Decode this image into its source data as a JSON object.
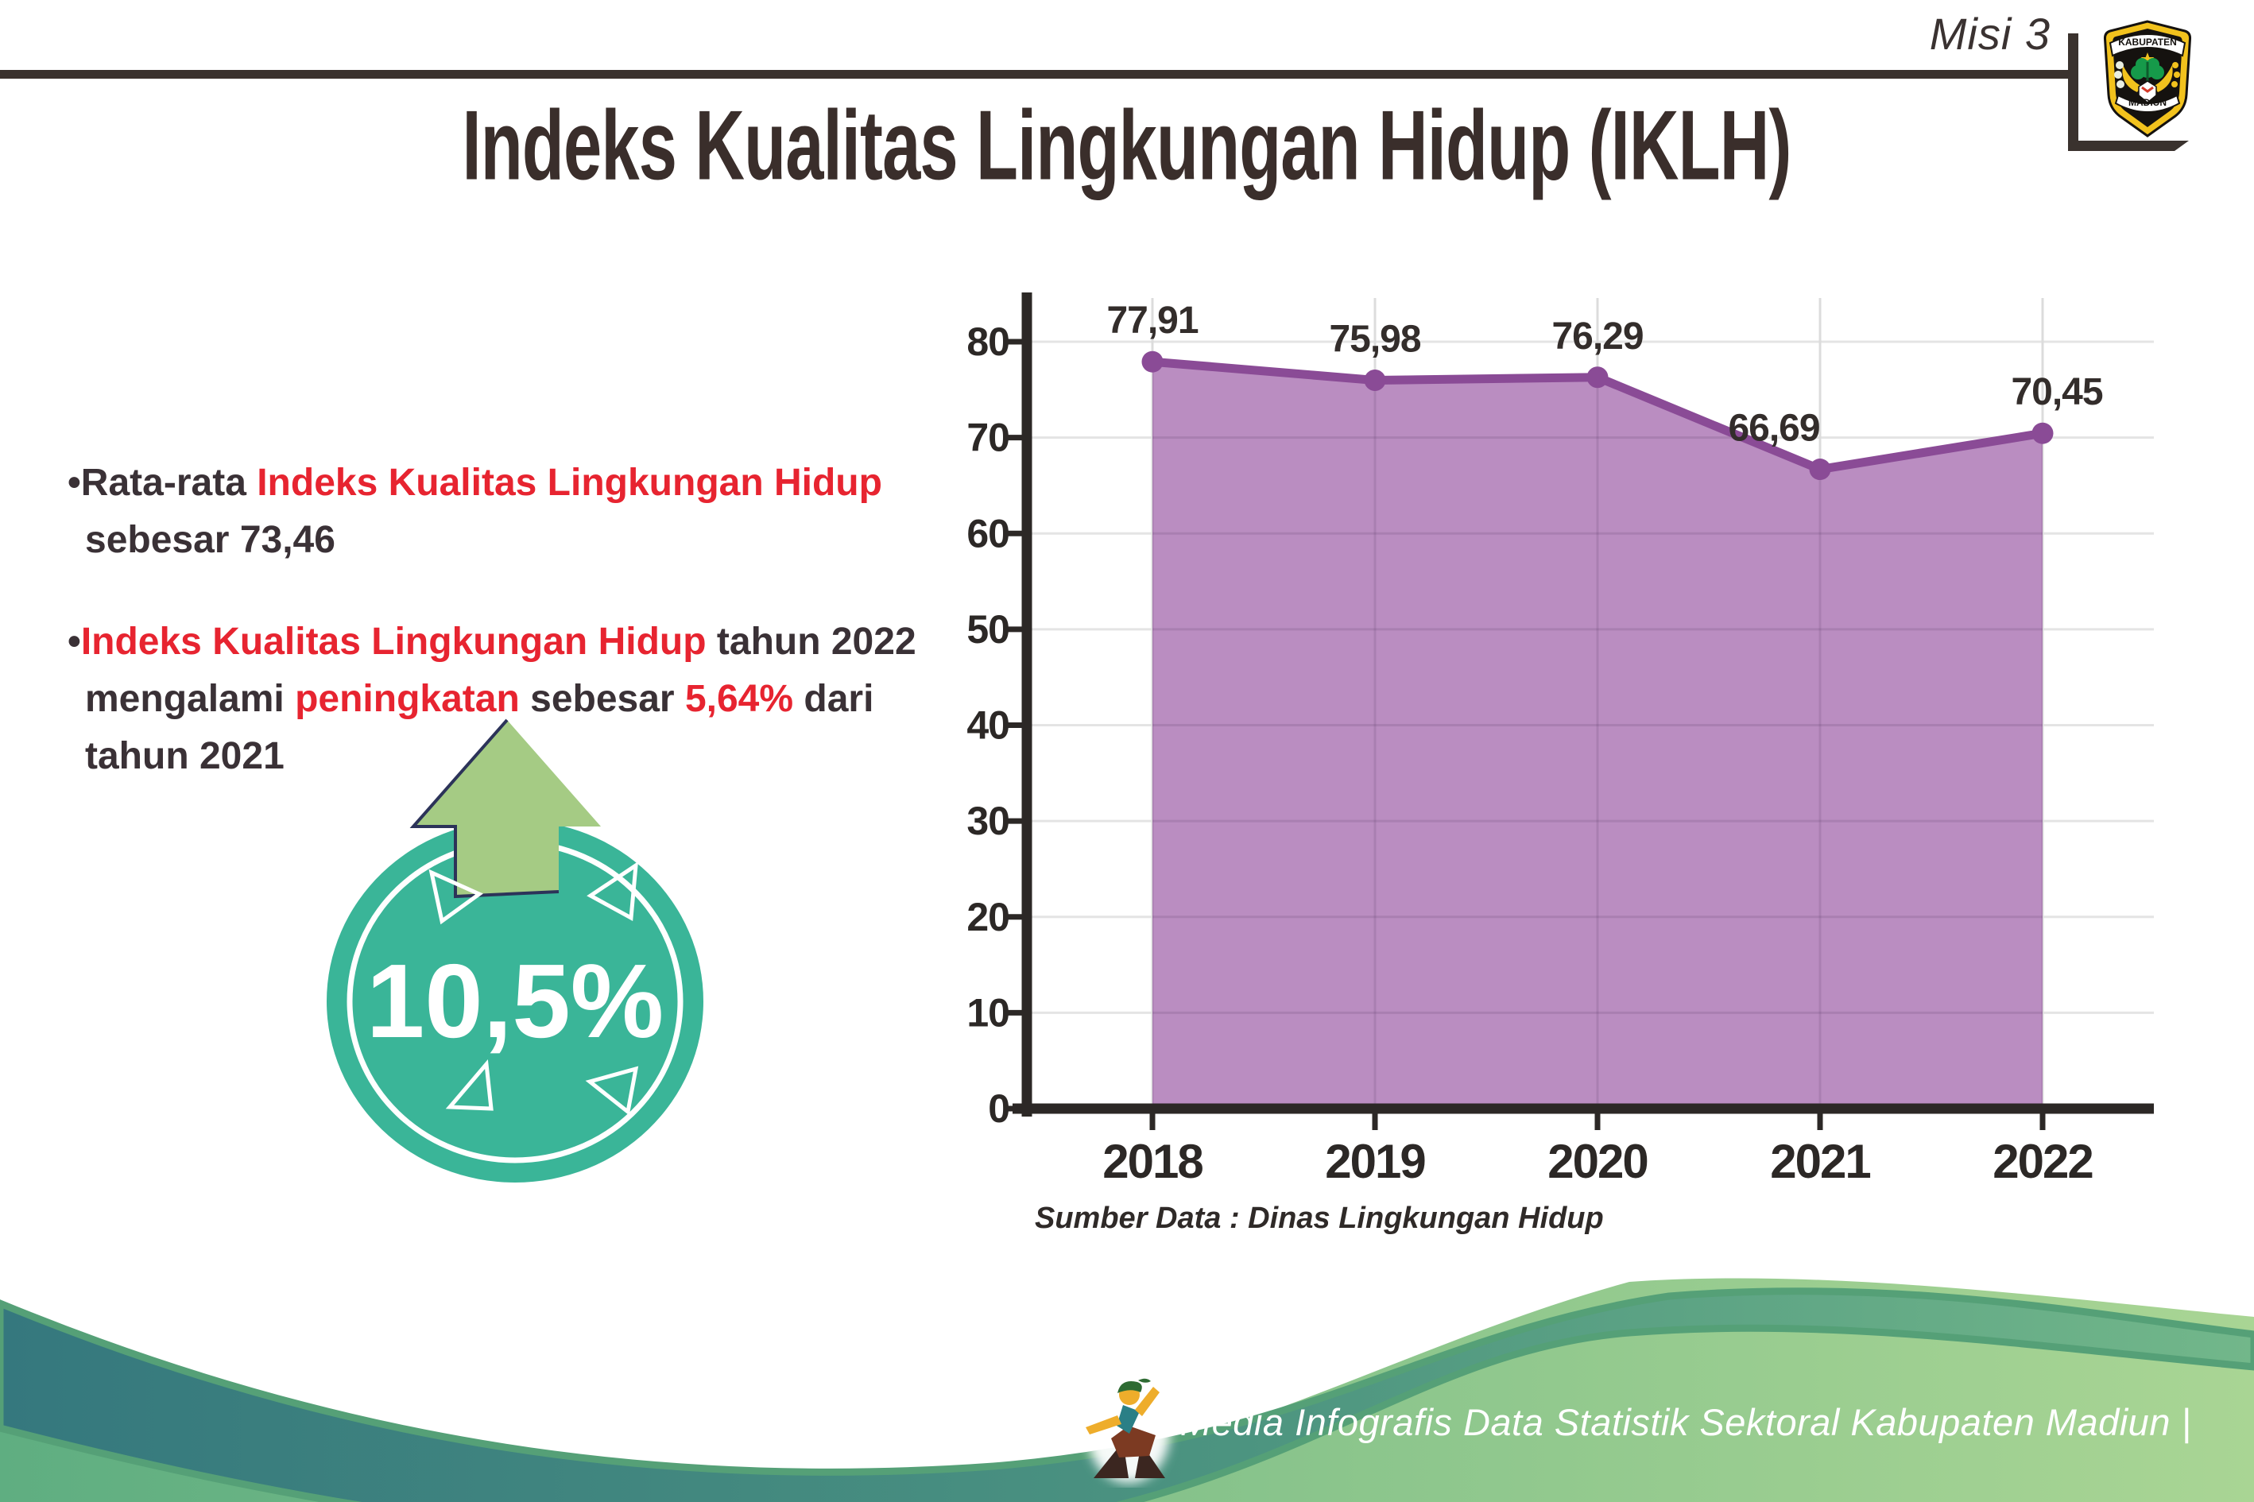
{
  "header": {
    "misi": "Misi 3",
    "logo": {
      "top_text": "KABUPATEN",
      "bottom_text": "MADIUN"
    }
  },
  "title": "Indeks Kualitas Lingkungan Hidup (IKLH)",
  "bullets": {
    "b1": [
      {
        "t": "•Rata-rata ",
        "c": "dark"
      },
      {
        "t": "Indeks Kualitas Lingkungan Hidup",
        "c": "red"
      },
      {
        "br": true
      },
      {
        "t": "sebesar 73,46",
        "c": "dark"
      }
    ],
    "b2": [
      {
        "t": "•",
        "c": "dark"
      },
      {
        "t": "Indeks Kualitas Lingkungan Hidup",
        "c": "red"
      },
      {
        "t": " tahun 2022",
        "c": "dark"
      },
      {
        "br": true
      },
      {
        "t": "mengalami ",
        "c": "dark"
      },
      {
        "t": "peningkatan",
        "c": "red"
      },
      {
        "t": " sebesar ",
        "c": "dark"
      },
      {
        "t": "5,64%",
        "c": "red"
      },
      {
        "t": " dari",
        "c": "dark"
      },
      {
        "br": true
      },
      {
        "t": "tahun 2021",
        "c": "dark"
      }
    ]
  },
  "badge": {
    "value": "10,5%",
    "circle_color": "#3ab598",
    "arrow_color": "#a5cb84",
    "arrow_outline_color": "#2c3359"
  },
  "chart_data": {
    "type": "area",
    "categories": [
      "2018",
      "2019",
      "2020",
      "2021",
      "2022"
    ],
    "series": [
      {
        "name": "IKLH",
        "values": [
          77.91,
          75.98,
          76.29,
          66.69,
          70.45
        ],
        "labels": [
          "77,91",
          "75,98",
          "76,29",
          "66,69",
          "70,45"
        ]
      }
    ],
    "title": "",
    "xlabel": "",
    "ylabel": "",
    "ylim": [
      0,
      80
    ],
    "ytick_step": 10,
    "yticks": [
      "0",
      "10",
      "20",
      "30",
      "40",
      "50",
      "60",
      "70",
      "80"
    ],
    "grid": true,
    "legend": false,
    "area_color": "#b687be",
    "line_color": "#8a4b96",
    "axis_color": "#2c2826",
    "label_color": "#332d2b"
  },
  "source": "Sumber Data : Dinas Lingkungan Hidup",
  "footer": {
    "credit": "Media Infografis Data Statistik Sektoral Kabupaten Madiun |",
    "teal_color": "#35787e",
    "green_color": "#a6d393"
  },
  "accent_colors": {
    "red": "#e72430",
    "dark_text": "#3a3136",
    "rule": "#3a322e"
  }
}
